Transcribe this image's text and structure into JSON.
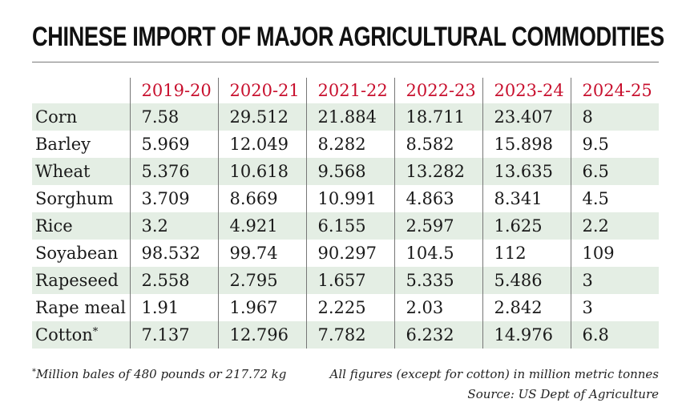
{
  "title": "CHINESE IMPORT OF MAJOR AGRICULTURAL COMMODITIES",
  "colors": {
    "header_text": "#c8102e",
    "row_shade": "#e4eee4"
  },
  "chart_data": {
    "type": "table",
    "title": "CHINESE IMPORT OF MAJOR AGRICULTURAL COMMODITIES",
    "columns": [
      "2019-20",
      "2020-21",
      "2021-22",
      "2022-23",
      "2023-24",
      "2024-25"
    ],
    "rows": [
      {
        "label": "Corn",
        "mark": "",
        "values": [
          "7.58",
          "29.512",
          "21.884",
          "18.711",
          "23.407",
          "8"
        ]
      },
      {
        "label": "Barley",
        "mark": "",
        "values": [
          "5.969",
          "12.049",
          "8.282",
          "8.582",
          "15.898",
          "9.5"
        ]
      },
      {
        "label": "Wheat",
        "mark": "",
        "values": [
          "5.376",
          "10.618",
          "9.568",
          "13.282",
          "13.635",
          "6.5"
        ]
      },
      {
        "label": "Sorghum",
        "mark": "",
        "values": [
          "3.709",
          "8.669",
          "10.991",
          "4.863",
          "8.341",
          "4.5"
        ]
      },
      {
        "label": "Rice",
        "mark": "",
        "values": [
          "3.2",
          "4.921",
          "6.155",
          "2.597",
          "1.625",
          "2.2"
        ]
      },
      {
        "label": "Soyabean",
        "mark": "",
        "values": [
          "98.532",
          "99.74",
          "90.297",
          "104.5",
          "112",
          "109"
        ]
      },
      {
        "label": "Rapeseed",
        "mark": "",
        "values": [
          "2.558",
          "2.795",
          "1.657",
          "5.335",
          "5.486",
          "3"
        ]
      },
      {
        "label": "Rape meal",
        "mark": "",
        "values": [
          "1.91",
          "1.967",
          "2.225",
          "2.03",
          "2.842",
          "3"
        ]
      },
      {
        "label": "Cotton",
        "mark": "*",
        "values": [
          "7.137",
          "12.796",
          "7.782",
          "6.232",
          "14.976",
          "6.8"
        ]
      }
    ]
  },
  "footnotes": {
    "cotton_mark": "*",
    "cotton_note": "Million bales of 480 pounds or 217.72 kg",
    "units_note": "All figures (except for cotton) in million metric tonnes",
    "source": "Source: US Dept of Agriculture"
  }
}
